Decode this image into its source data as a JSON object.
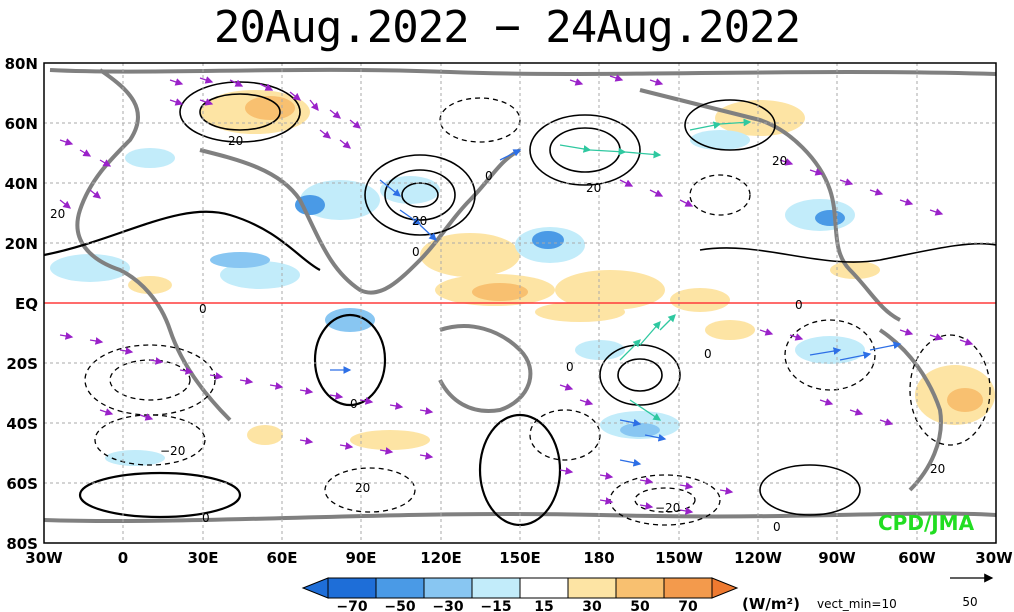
{
  "title": "20Aug.2022 − 24Aug.2022",
  "lat_labels": [
    "80N",
    "60N",
    "40N",
    "20N",
    "EQ",
    "20S",
    "40S",
    "60S",
    "80S"
  ],
  "lon_labels": [
    "30W",
    "0",
    "30E",
    "60E",
    "90E",
    "120E",
    "150E",
    "180",
    "150W",
    "120W",
    "90W",
    "60W",
    "30W"
  ],
  "contour_labels": [
    "20",
    "0",
    "20",
    "0",
    "20",
    "20",
    "0",
    "20",
    "0",
    "0",
    "0",
    "0",
    "−20",
    "20",
    "0",
    "20",
    "−20",
    "0"
  ],
  "colorbar": {
    "ticks": [
      "−70",
      "−50",
      "−30",
      "−15",
      "15",
      "30",
      "50",
      "70"
    ],
    "colors": [
      "#1e6ed8",
      "#4a9ae6",
      "#88c6f2",
      "#c2ecfa",
      "#ffffff",
      "#fde4a4",
      "#f8c070",
      "#f39a4c",
      "#ee7a30"
    ],
    "units": "(W/m²)",
    "vect_min_label": "vect_min=10",
    "ref_vector_value": "50"
  },
  "credit": "CPD/JMA",
  "colors": {
    "equator_line": "#ff3b3b",
    "coastline": "#808080",
    "vector_primary": "#9a22c9",
    "vector_secondary": "#2d6fe6",
    "vector_strong": "#2fc8a0",
    "credit_text": "#22dd22"
  }
}
